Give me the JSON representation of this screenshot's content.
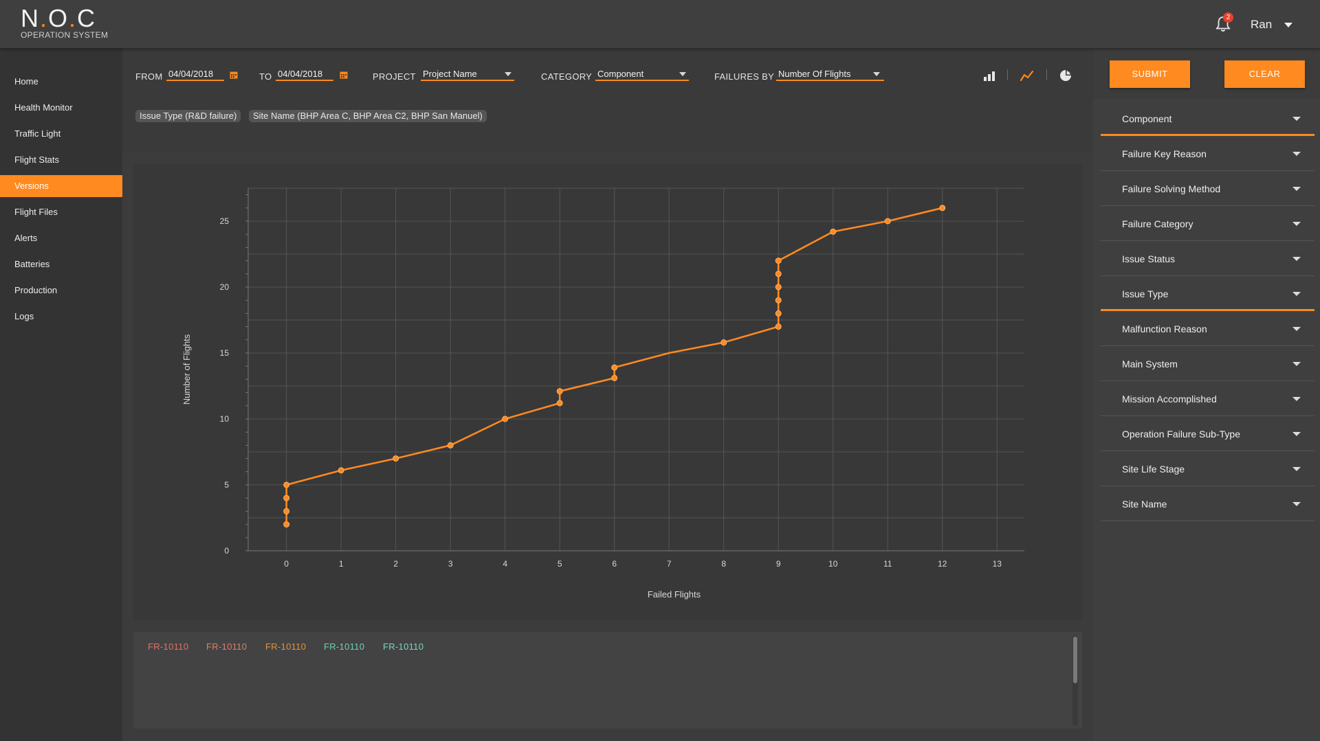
{
  "app": {
    "logo_title": "N.O.C",
    "logo_subtitle": "OPERATION SYSTEM",
    "notification_count": "2",
    "user_name": "Ran"
  },
  "colors": {
    "accent": "#ff8a1f",
    "background": "#3c3c3c",
    "sidebar": "#333333"
  },
  "sidebar": {
    "items": [
      {
        "label": "Home"
      },
      {
        "label": "Health Monitor"
      },
      {
        "label": "Traffic Light"
      },
      {
        "label": "Flight Stats"
      },
      {
        "label": "Versions",
        "active": true
      },
      {
        "label": "Flight Files"
      },
      {
        "label": "Alerts"
      },
      {
        "label": "Batteries"
      },
      {
        "label": "Production"
      },
      {
        "label": "Logs"
      }
    ]
  },
  "filters": {
    "from_label": "FROM",
    "from_value": "04/04/2018",
    "to_label": "TO",
    "to_value": "04/04/2018",
    "project_label": "PROJECT",
    "project_value": "Project Name",
    "category_label": "CATEGORY",
    "category_value": "Component",
    "failures_by_label": "FAILURES BY",
    "failures_by_value": "Number Of Flights",
    "chart_types": [
      "bar-chart-icon",
      "line-chart-icon",
      "pie-chart-icon"
    ],
    "selected_chart_type": "line-chart-icon"
  },
  "actions": {
    "submit_label": "SUBMIT",
    "clear_label": "CLEAR"
  },
  "chips": [
    "Issue Type (R&D failure)",
    "Site Name (BHP Area C, BHP Area C2, BHP San Manuel)"
  ],
  "chart_data": {
    "type": "line",
    "xlabel": "Failed Flights",
    "ylabel": "Number of Flights",
    "xlim": [
      -0.7,
      13.5
    ],
    "ylim": [
      0,
      27.5
    ],
    "x_ticks": [
      0,
      1,
      2,
      3,
      4,
      5,
      6,
      7,
      8,
      9,
      10,
      11,
      12,
      13
    ],
    "y_ticks": [
      0,
      5,
      10,
      15,
      20,
      25
    ],
    "grid": true,
    "series": [
      {
        "color": "#ff8a1f",
        "points": [
          [
            0,
            2
          ],
          [
            0,
            3
          ],
          [
            0,
            4
          ],
          [
            0,
            5
          ],
          [
            1,
            6.1
          ],
          [
            2,
            7
          ],
          [
            3,
            8
          ],
          [
            4,
            10
          ],
          [
            5,
            11.2
          ],
          [
            5,
            12.1
          ],
          [
            6,
            13.1
          ],
          [
            6,
            13.9
          ],
          [
            8,
            15.8
          ],
          [
            9,
            17
          ],
          [
            9,
            18
          ],
          [
            9,
            19
          ],
          [
            9,
            20
          ],
          [
            9,
            21
          ],
          [
            9,
            22
          ],
          [
            10,
            24.2
          ],
          [
            11,
            25
          ],
          [
            12,
            26
          ]
        ],
        "markers": [
          true,
          true,
          true,
          true,
          true,
          true,
          true,
          true,
          true,
          true,
          true,
          true,
          true,
          true,
          true,
          true,
          true,
          true,
          true,
          true,
          true,
          true
        ]
      }
    ],
    "line_passes_through": [
      [
        7,
        15
      ]
    ]
  },
  "records": [
    {
      "code": "FR-10110",
      "color": "#e0736a"
    },
    {
      "code": "FR-10110",
      "color": "#e07f6e"
    },
    {
      "code": "FR-10110",
      "color": "#e59440"
    },
    {
      "code": "FR-10110",
      "color": "#6fcfb8"
    },
    {
      "code": "FR-10110",
      "color": "#7ad6c4"
    }
  ],
  "filter_groups": [
    {
      "label": "Component",
      "highlight": true
    },
    {
      "label": "Failure Key Reason"
    },
    {
      "label": "Failure Solving Method"
    },
    {
      "label": "Failure Category"
    },
    {
      "label": "Issue Status"
    },
    {
      "label": "Issue Type",
      "highlight": true
    },
    {
      "label": "Malfunction Reason"
    },
    {
      "label": "Main System"
    },
    {
      "label": "Mission Accomplished"
    },
    {
      "label": "Operation Failure Sub-Type"
    },
    {
      "label": "Site Life Stage"
    },
    {
      "label": "Site Name"
    }
  ]
}
